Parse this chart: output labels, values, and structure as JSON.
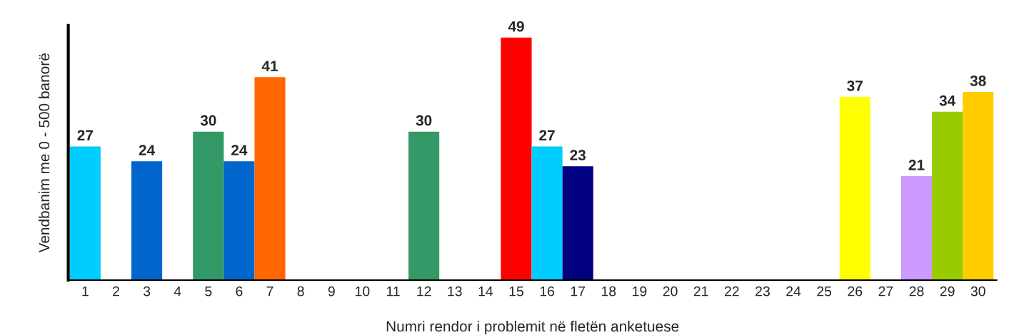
{
  "chart_data": {
    "type": "bar",
    "xlabel": "Numri rendor i problemit në fletën anketuese",
    "ylabel": "Vendbanim me 0 - 500 banorë",
    "categories": [
      "1",
      "2",
      "3",
      "4",
      "5",
      "6",
      "7",
      "8",
      "9",
      "10",
      "11",
      "12",
      "13",
      "14",
      "15",
      "16",
      "17",
      "18",
      "19",
      "20",
      "21",
      "22",
      "23",
      "24",
      "25",
      "26",
      "27",
      "28",
      "29",
      "30"
    ],
    "values": [
      27,
      null,
      24,
      null,
      30,
      24,
      41,
      null,
      null,
      null,
      null,
      30,
      null,
      null,
      49,
      27,
      23,
      null,
      null,
      null,
      null,
      null,
      null,
      null,
      null,
      37,
      null,
      21,
      34,
      38
    ],
    "colors": [
      "#00ccff",
      null,
      "#0066cc",
      null,
      "#339966",
      "#0066cc",
      "#ff6600",
      null,
      null,
      null,
      null,
      "#339966",
      null,
      null,
      "#ff0000",
      "#00ccff",
      "#000080",
      null,
      null,
      null,
      null,
      null,
      null,
      null,
      null,
      "#ffff00",
      null,
      "#cc99ff",
      "#99cc00",
      "#ffcc00"
    ],
    "data_labels": true,
    "tick_labels": "x",
    "grid": false,
    "legend": false
  }
}
